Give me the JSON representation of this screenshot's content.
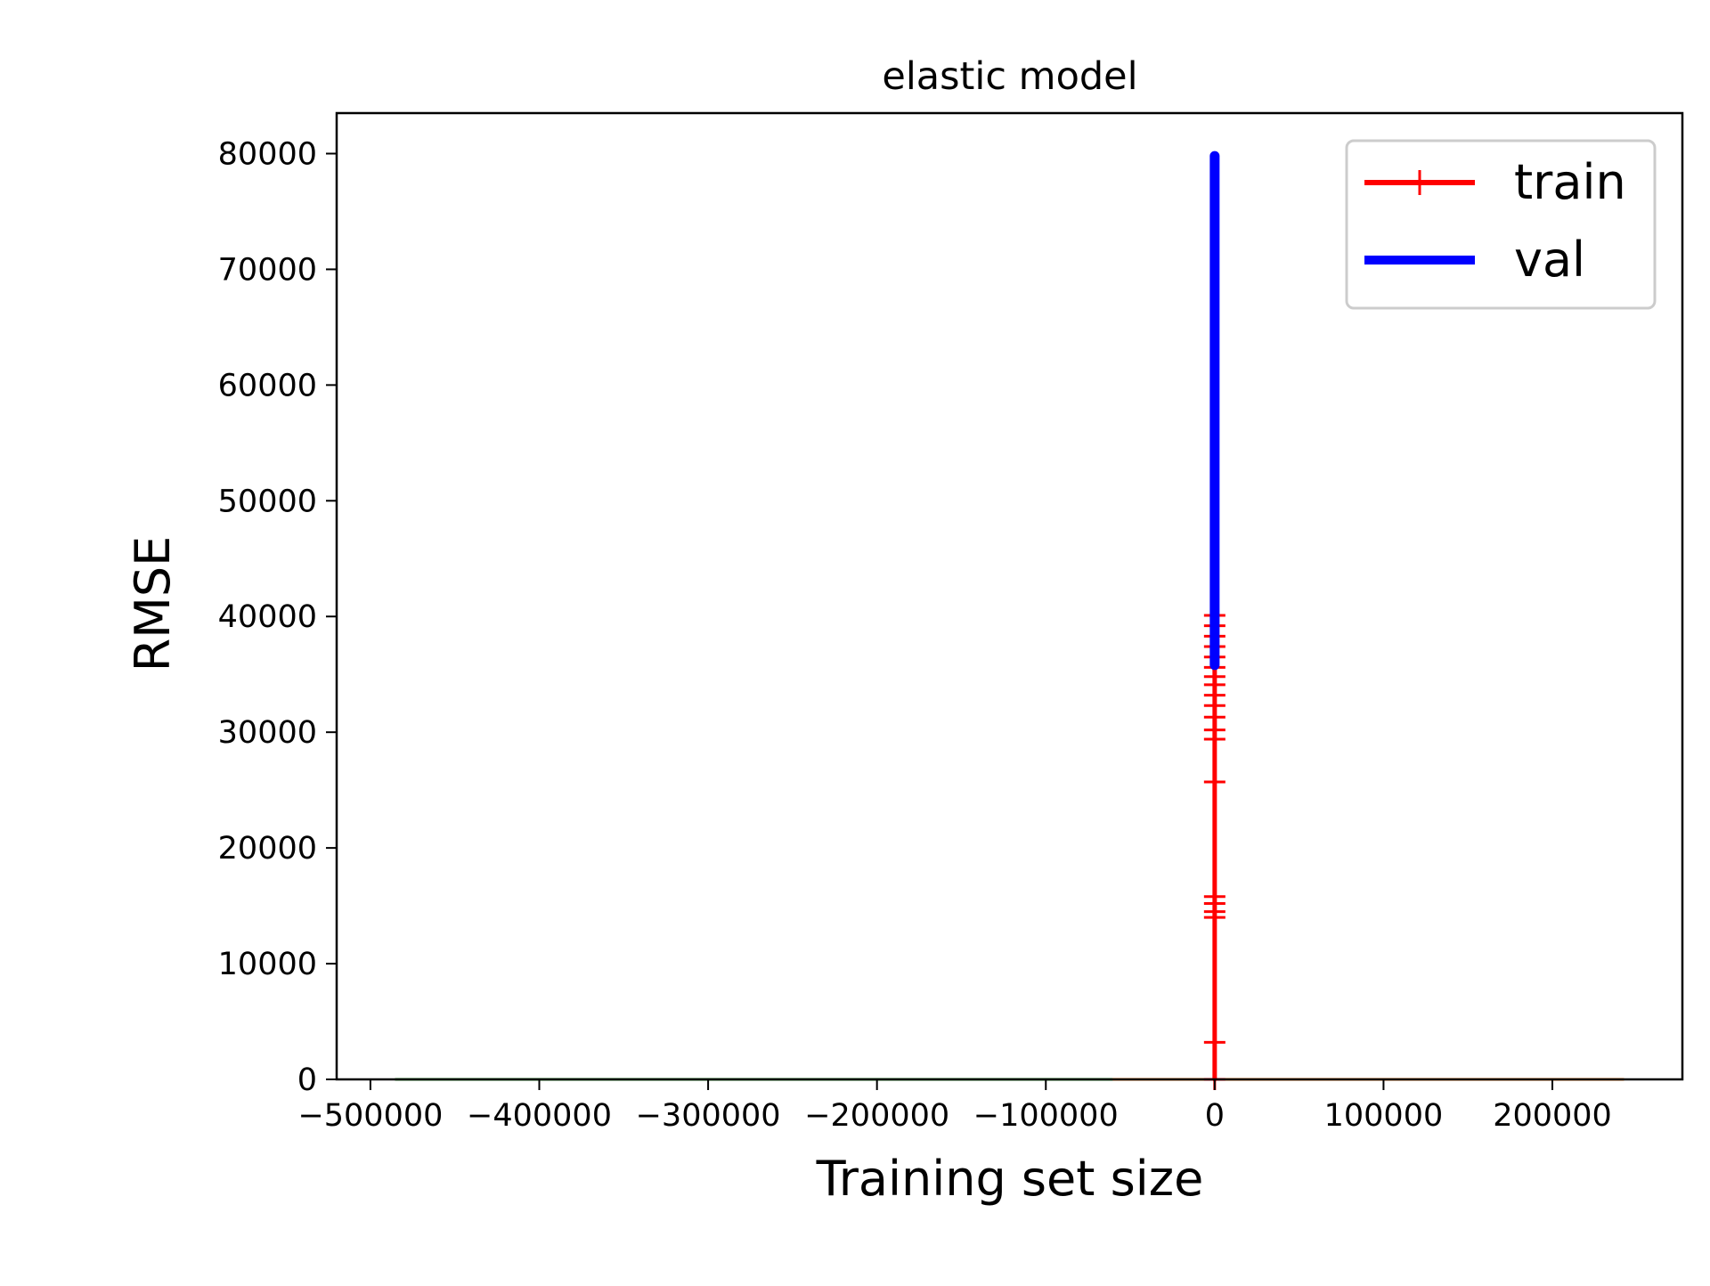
{
  "chart_data": {
    "type": "line",
    "title": "elastic model",
    "xlabel": "Training set size",
    "ylabel": "RMSE",
    "xlim": [
      -520000,
      277000
    ],
    "ylim": [
      0,
      83500
    ],
    "xticks": [
      -500000,
      -400000,
      -300000,
      -200000,
      -100000,
      0,
      100000,
      200000
    ],
    "xtick_labels": [
      "−500000",
      "−400000",
      "−300000",
      "−200000",
      "−100000",
      "0",
      "100000",
      "200000"
    ],
    "yticks": [
      0,
      10000,
      20000,
      30000,
      40000,
      50000,
      60000,
      70000,
      80000
    ],
    "ytick_labels": [
      "0",
      "10000",
      "20000",
      "30000",
      "40000",
      "50000",
      "60000",
      "70000",
      "80000"
    ],
    "grid": false,
    "legend_position": "top-right",
    "series": [
      {
        "name": "train",
        "color": "#ff0000",
        "marker": "+",
        "x": [
          0,
          0,
          0,
          0,
          0,
          0,
          0,
          0,
          0,
          0,
          0,
          0,
          0,
          0,
          0,
          0,
          0,
          0,
          0,
          0
        ],
        "y": [
          0,
          3200,
          14000,
          14500,
          15200,
          15800,
          25700,
          29400,
          30200,
          31300,
          32300,
          33200,
          34100,
          34800,
          35600,
          36500,
          37400,
          38300,
          39200,
          40100
        ]
      },
      {
        "name": "val",
        "color": "#0000ff",
        "marker": "",
        "x": [
          0,
          0,
          0,
          0,
          0
        ],
        "y": [
          79800,
          60000,
          45000,
          38000,
          35800
        ]
      },
      {
        "color": "#2ca02c",
        "marker": "",
        "x": [
          -485000,
          -60000
        ],
        "y": [
          0,
          0
        ]
      },
      {
        "color": "#ff7f0e",
        "marker": "",
        "x": [
          -60000,
          242000
        ],
        "y": [
          0,
          0
        ]
      }
    ]
  }
}
